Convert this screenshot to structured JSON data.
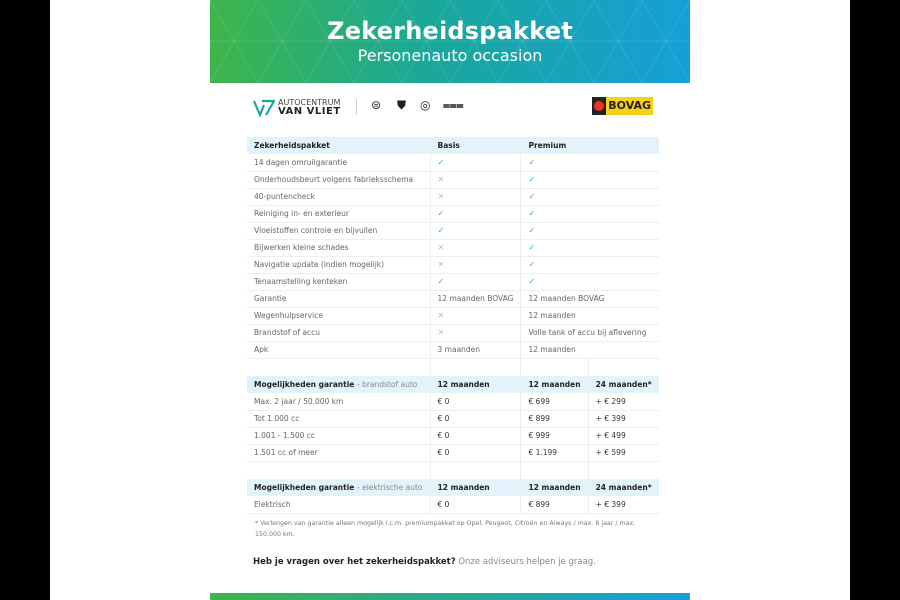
{
  "banner": {
    "title": "Zekerheidspakket",
    "subtitle": "Personenauto occasion"
  },
  "logos": {
    "dealer_line1": "AUTOCENTRUM",
    "dealer_line2": "VAN VLIET",
    "brands": [
      "opel-logo",
      "peugeot-logo",
      "citroen-logo",
      "aiways-logo"
    ],
    "bovag": "BOVAG"
  },
  "package_table": {
    "headers": [
      "Zekerheidspakket",
      "Basis",
      "Premium"
    ],
    "rows": [
      {
        "label": "14 dagen omruilgarantie",
        "basis": "check",
        "premium": "check"
      },
      {
        "label": "Onderhoudsbeurt volgens fabrieksschema",
        "basis": "cross",
        "premium": "check"
      },
      {
        "label": "40-puntencheck",
        "basis": "cross",
        "premium": "check"
      },
      {
        "label": "Reiniging in- en exterieur",
        "basis": "check",
        "premium": "check"
      },
      {
        "label": "Vloeistoffen controle en bijvullen",
        "basis": "check",
        "premium": "check"
      },
      {
        "label": "Bijwerken kleine schades",
        "basis": "cross",
        "premium": "check"
      },
      {
        "label": "Navigatie update (indien mogelijk)",
        "basis": "cross",
        "premium": "check"
      },
      {
        "label": "Tenaamstelling kenteken",
        "basis": "check",
        "premium": "check"
      },
      {
        "label": "Garantie",
        "basis": "12 maanden BOVAG",
        "premium": "12 maanden BOVAG"
      },
      {
        "label": "Wegenhulpservice",
        "basis": "cross",
        "premium": "12 maanden"
      },
      {
        "label": "Brandstof of accu",
        "basis": "cross",
        "premium": "Volle tank of accu bij aflevering"
      },
      {
        "label": "Apk",
        "basis": "3 maanden",
        "premium": "12 maanden"
      }
    ]
  },
  "fuel_table": {
    "title": "Mogelijkheden garantie",
    "subtitle": "- brandstof auto",
    "headers": [
      "12 maanden",
      "12 maanden",
      "24 maanden*"
    ],
    "rows": [
      {
        "label": "Max. 2 jaar / 50.000 km",
        "values": [
          "€ 0",
          "€ 699",
          "+ € 299"
        ]
      },
      {
        "label": "Tot 1.000 cc",
        "values": [
          "€ 0",
          "€ 899",
          "+ € 399"
        ]
      },
      {
        "label": "1.001 - 1.500 cc",
        "values": [
          "€ 0",
          "€ 999",
          "+ € 499"
        ]
      },
      {
        "label": "1.501 cc of meer",
        "values": [
          "€ 0",
          "€ 1.199",
          "+ € 599"
        ]
      }
    ]
  },
  "electric_table": {
    "title": "Mogelijkheden garantie",
    "subtitle": "- elektrische auto",
    "headers": [
      "12 maanden",
      "12 maanden",
      "24 maanden*"
    ],
    "rows": [
      {
        "label": "Elektrisch",
        "values": [
          "€ 0",
          "€ 899",
          "+ € 399"
        ]
      }
    ]
  },
  "footnote": "* Verlengen van garantie alleen mogelijk i.c.m. premiumpakket op Opel, Peugeot, Citroën en Aiways / max. 8 jaar / max. 150.000 km.",
  "question": {
    "bold": "Heb je vragen over het zekerheidspakket?",
    "rest": " Onze adviseurs helpen je graag."
  },
  "icons": {
    "check": "✓",
    "cross": "✕"
  },
  "colors": {
    "accent": "#29a8d6",
    "header_bg": "#e3f3fb",
    "gradient_start": "#3db54a",
    "gradient_end": "#169fd8"
  }
}
